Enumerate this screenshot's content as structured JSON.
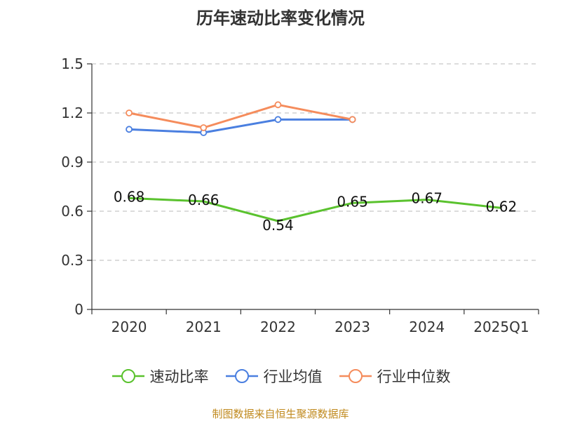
{
  "chart_data": {
    "type": "line",
    "title": "历年速动比率变化情况",
    "categories": [
      "2020",
      "2021",
      "2022",
      "2023",
      "2024",
      "2025Q1"
    ],
    "ylim": [
      0,
      1.5
    ],
    "yticks": [
      "0",
      "0.3",
      "0.6",
      "0.9",
      "1.2",
      "1.5"
    ],
    "ytick_values": [
      0,
      0.3,
      0.6,
      0.9,
      1.2,
      1.5
    ],
    "grid": true,
    "legend_position": "bottom",
    "series": [
      {
        "name": "速动比率",
        "color": "#5ac22e",
        "values": [
          0.68,
          0.66,
          0.54,
          0.65,
          0.67,
          0.62
        ],
        "labels": [
          "0.68",
          "0.66",
          "0.54",
          "0.65",
          "0.67",
          "0.62"
        ],
        "show_markers": false,
        "show_labels": true
      },
      {
        "name": "行业均值",
        "color": "#4a7fe0",
        "values": [
          1.1,
          1.08,
          1.16,
          1.16,
          null,
          null
        ],
        "show_markers": true,
        "show_labels": false
      },
      {
        "name": "行业中位数",
        "color": "#f58c5c",
        "values": [
          1.2,
          1.11,
          1.25,
          1.16,
          null,
          null
        ],
        "show_markers": true,
        "show_labels": false
      }
    ]
  },
  "source": "制图数据来自恒生聚源数据库"
}
